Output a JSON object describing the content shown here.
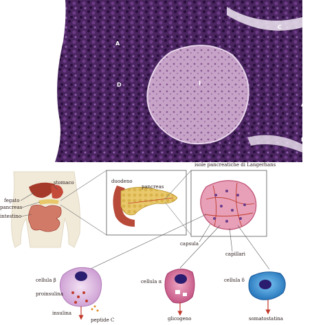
{
  "micrograph": {
    "region_labels": [
      "A",
      "C",
      "I",
      "D",
      "A",
      "D"
    ]
  },
  "top_label": "isole pancreatiche di Langerhans",
  "body_labels": {
    "stomach": "stomaco",
    "liver": "fegato",
    "pancreas": "pancreas",
    "intestine": "intestino"
  },
  "zoom_labels": {
    "duodenum": "duodeno",
    "pancreas": "pancreas"
  },
  "islet_labels": {
    "capsule": "capsula",
    "capillaries": "capillari"
  },
  "cells": {
    "beta": {
      "name": "cellula β",
      "secretion_1": "proinsulina",
      "secretion_2": "insulina",
      "secretion_3": "peptide C"
    },
    "alpha": {
      "name": "cellula α",
      "secretion": "glicogeno"
    },
    "delta": {
      "name": "cellula δ",
      "secretion": "somatostatina"
    }
  },
  "colors": {
    "micrograph_bg": "#4a2560",
    "islet_fill": "#c7a3c8",
    "organ_red": "#a63a2a",
    "pancreas_yellow": "#e8c86a",
    "beta_cell": "#e6c8e8",
    "alpha_cell": "#d97aa6",
    "delta_cell": "#3a9be0"
  }
}
